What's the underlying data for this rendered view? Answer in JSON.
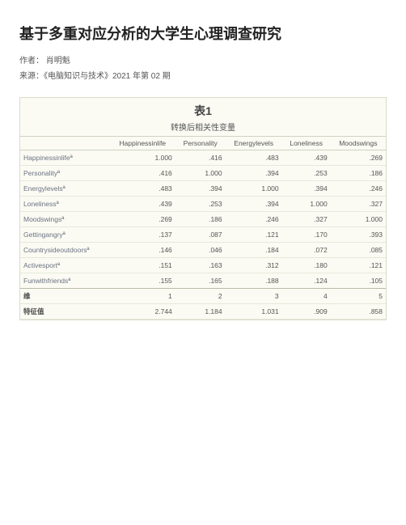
{
  "title": "基于多重对应分析的大学生心理调查研究",
  "author_line": "作者： 肖明魁",
  "source_line": "来源：《电脑知识与技术》2021 年第 02 期",
  "table": {
    "label": "表1",
    "subtitle": "转换后相关性变量",
    "columns": [
      "",
      "Happinessinlife",
      "Personality",
      "Energylevels",
      "Loneliness",
      "Moodswings"
    ],
    "rows": [
      {
        "label": "Happinessinlifeª",
        "vals": [
          "1.000",
          ".416",
          ".483",
          ".439",
          ".269"
        ]
      },
      {
        "label": "Personalityª",
        "vals": [
          ".416",
          "1.000",
          ".394",
          ".253",
          ".186"
        ]
      },
      {
        "label": "Energylevelsª",
        "vals": [
          ".483",
          ".394",
          "1.000",
          ".394",
          ".246"
        ]
      },
      {
        "label": "Lonelinessª",
        "vals": [
          ".439",
          ".253",
          ".394",
          "1.000",
          ".327"
        ]
      },
      {
        "label": "Moodswingsª",
        "vals": [
          ".269",
          ".186",
          ".246",
          ".327",
          "1.000"
        ]
      },
      {
        "label": "Gettingangryª",
        "vals": [
          ".137",
          ".087",
          ".121",
          ".170",
          ".393"
        ]
      },
      {
        "label": "Countrysideoutdoorsª",
        "vals": [
          ".146",
          ".046",
          ".184",
          ".072",
          ".085"
        ]
      },
      {
        "label": "Activesportª",
        "vals": [
          ".151",
          ".163",
          ".312",
          ".180",
          ".121"
        ]
      },
      {
        "label": "Funwithfriendsª",
        "vals": [
          ".155",
          ".165",
          ".188",
          ".124",
          ".105"
        ]
      }
    ],
    "footer_rows": [
      {
        "label": "维",
        "vals": [
          "1",
          "2",
          "3",
          "4",
          "5"
        ]
      },
      {
        "label": "特征值",
        "vals": [
          "2.744",
          "1.184",
          "1.031",
          ".909",
          ".858"
        ]
      }
    ],
    "styling": {
      "background_color": "#fbfbf4",
      "border_color": "#d9dcc9",
      "row_divider_color": "#e6e8da",
      "header_divider_color": "#cfd2bf",
      "section_divider_color": "#b8bca8",
      "title_fontsize": 14,
      "subtitle_fontsize": 10,
      "cell_fontsize": 8.5,
      "label_color": "#6b7280",
      "value_color": "#555555",
      "col_align": [
        "left",
        "right",
        "right",
        "right",
        "right",
        "right"
      ]
    }
  }
}
